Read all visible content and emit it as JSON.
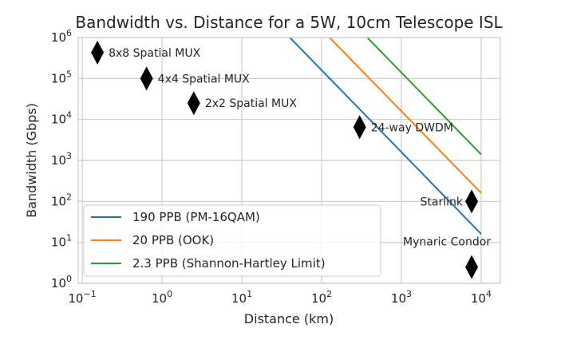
{
  "chart_data": {
    "type": "line",
    "title": "Bandwidth vs. Distance for a 5W, 10cm Telescope ISL",
    "xlabel": "Distance (km)",
    "ylabel": "Bandwidth (Gbps)",
    "xscale": "log",
    "yscale": "log",
    "xlim": [
      0.089,
      17400
    ],
    "ylim": [
      1,
      1000000
    ],
    "grid": true,
    "legend_placement": "lower-left",
    "x_ticks": [
      {
        "value": 0.1,
        "base": "10",
        "exp": "−1"
      },
      {
        "value": 1,
        "base": "10",
        "exp": "0"
      },
      {
        "value": 10,
        "base": "10",
        "exp": "1"
      },
      {
        "value": 100,
        "base": "10",
        "exp": "2"
      },
      {
        "value": 1000,
        "base": "10",
        "exp": "3"
      },
      {
        "value": 10000,
        "base": "10",
        "exp": "4"
      }
    ],
    "y_ticks": [
      {
        "value": 1,
        "base": "10",
        "exp": "0"
      },
      {
        "value": 10,
        "base": "10",
        "exp": "1"
      },
      {
        "value": 100,
        "base": "10",
        "exp": "2"
      },
      {
        "value": 1000,
        "base": "10",
        "exp": "3"
      },
      {
        "value": 10000,
        "base": "10",
        "exp": "4"
      },
      {
        "value": 100000,
        "base": "10",
        "exp": "5"
      },
      {
        "value": 1000000,
        "base": "10",
        "exp": "6"
      }
    ],
    "series": [
      {
        "name": "190 PPB (PM-16QAM)",
        "color": "#1f77b4",
        "x": [
          40,
          10000
        ],
        "y": [
          1000000,
          16
        ]
      },
      {
        "name": "20 PPB (OOK)",
        "color": "#ff7f0e",
        "x": [
          126,
          10000
        ],
        "y": [
          1000000,
          160
        ]
      },
      {
        "name": "2.3 PPB (Shannon-Hartley Limit)",
        "color": "#2ca02c",
        "x": [
          374,
          10000
        ],
        "y": [
          1000000,
          1400
        ]
      }
    ],
    "points": [
      {
        "label": "8x8 Spatial MUX",
        "x": 0.155,
        "y": 430000,
        "label_side": "right"
      },
      {
        "label": "4x4 Spatial MUX",
        "x": 0.64,
        "y": 100000,
        "label_side": "right"
      },
      {
        "label": "2x2 Spatial MUX",
        "x": 2.5,
        "y": 25000,
        "label_side": "right"
      },
      {
        "label": "24-way DWDM",
        "x": 300,
        "y": 6500,
        "label_side": "right"
      },
      {
        "label": "Starlink",
        "x": 7600,
        "y": 100,
        "label_side": "left"
      },
      {
        "label": "Mynaric Condor",
        "x": 7600,
        "y": 2.5,
        "label_side": "above"
      }
    ]
  }
}
